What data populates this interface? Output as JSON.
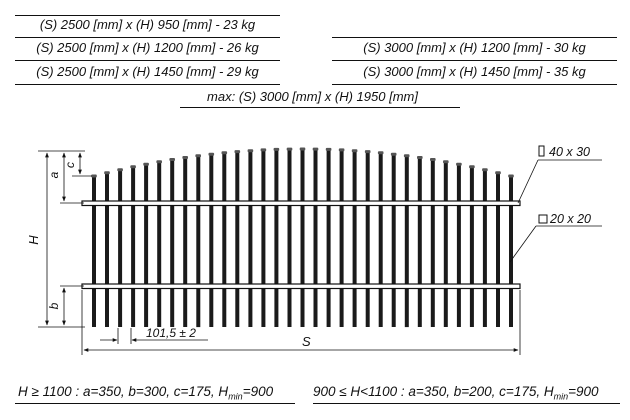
{
  "specs": {
    "left": [
      "(S) 2500 [mm] x (H) 950 [mm]   -  23 kg",
      "(S) 2500 [mm] x (H) 1200 [mm]  -  26 kg",
      "(S) 2500 [mm] x (H) 1450 [mm]  -  29 kg"
    ],
    "right": [
      "(S) 3000 [mm] x (H) 1200 [mm]  -  30 kg",
      "(S) 3000 [mm] x (H) 1450 [mm]  -  35 kg"
    ],
    "max": "max: (S) 3000 [mm] x (H) 1950 [mm]"
  },
  "drawing": {
    "dim_a": "a",
    "dim_c": "c",
    "dim_h": "H",
    "dim_b": "b",
    "dim_s": "S",
    "spacing": "101,5 ± 2",
    "rail_profile": "40 x 30",
    "bar_profile": "20 x 20"
  },
  "footnotes": {
    "left": {
      "text": "H ≥ 1100 : a=350, b=300, c=175, H",
      "sub": "min",
      "tail": "=900"
    },
    "right": {
      "text": "900 ≤ H<1100 : a=350, b=200, c=175, H",
      "sub": "min",
      "tail": "=900"
    }
  }
}
